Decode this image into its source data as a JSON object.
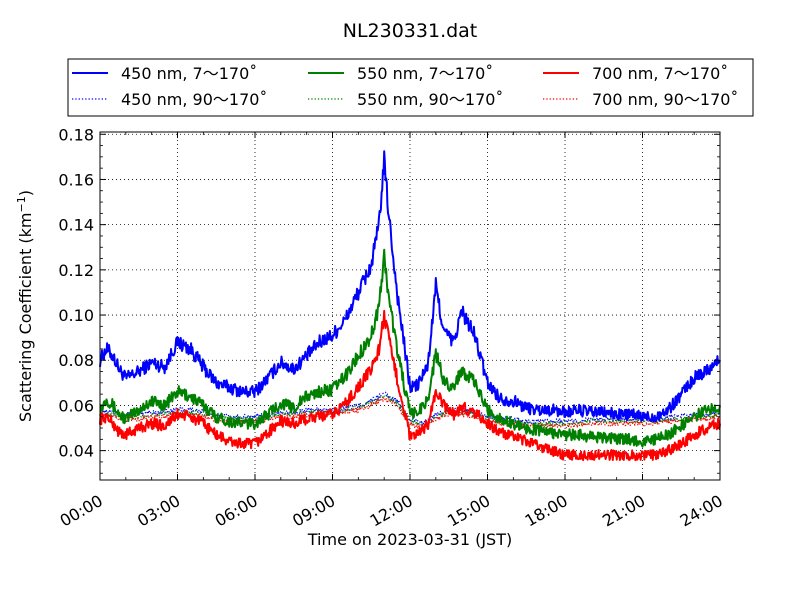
{
  "chart_data": {
    "type": "line",
    "title": "NL230331.dat",
    "xlabel": "Time on 2023-03-31 (JST)",
    "ylabel_main": "Scattering Coefficient (km",
    "ylabel_sup": "−1",
    "ylabel_close": ")",
    "xlim": [
      0,
      24
    ],
    "ylim": [
      0.027,
      0.181
    ],
    "x_ticks": [
      {
        "value": 0,
        "label": "00:00"
      },
      {
        "value": 3,
        "label": "03:00"
      },
      {
        "value": 6,
        "label": "06:00"
      },
      {
        "value": 9,
        "label": "09:00"
      },
      {
        "value": 12,
        "label": "12:00"
      },
      {
        "value": 15,
        "label": "15:00"
      },
      {
        "value": 18,
        "label": "18:00"
      },
      {
        "value": 21,
        "label": "21:00"
      },
      {
        "value": 24,
        "label": "24:00"
      }
    ],
    "y_ticks": [
      {
        "value": 0.04,
        "label": "0.04"
      },
      {
        "value": 0.06,
        "label": "0.06"
      },
      {
        "value": 0.08,
        "label": "0.08"
      },
      {
        "value": 0.1,
        "label": "0.10"
      },
      {
        "value": 0.12,
        "label": "0.12"
      },
      {
        "value": 0.14,
        "label": "0.14"
      },
      {
        "value": 0.16,
        "label": "0.16"
      },
      {
        "value": 0.18,
        "label": "0.18"
      }
    ],
    "grid": true,
    "legend_position": "top (above plot)",
    "series": [
      {
        "name": "450 nm, 7～170˚",
        "color": "#0000ff",
        "dash": "solid",
        "x": [
          0,
          0.25,
          0.5,
          0.75,
          1,
          1.5,
          2,
          2.5,
          3,
          3.5,
          4,
          4.5,
          5,
          5.5,
          6,
          6.5,
          7,
          7.5,
          8,
          8.5,
          9,
          9.5,
          10,
          10.5,
          10.8,
          11,
          11.2,
          11.5,
          12,
          12.3,
          12.7,
          13,
          13.3,
          13.7,
          14,
          14.5,
          15,
          15.5,
          16,
          16.5,
          17,
          17.5,
          18,
          18.5,
          19,
          19.5,
          20,
          20.5,
          21,
          21.5,
          22,
          22.5,
          23,
          23.5,
          24
        ],
        "y": [
          0.08,
          0.085,
          0.082,
          0.076,
          0.072,
          0.075,
          0.079,
          0.077,
          0.088,
          0.085,
          0.077,
          0.07,
          0.068,
          0.066,
          0.066,
          0.072,
          0.079,
          0.076,
          0.082,
          0.088,
          0.091,
          0.098,
          0.11,
          0.122,
          0.14,
          0.168,
          0.142,
          0.11,
          0.068,
          0.069,
          0.078,
          0.113,
          0.093,
          0.088,
          0.102,
          0.091,
          0.07,
          0.063,
          0.062,
          0.059,
          0.058,
          0.058,
          0.057,
          0.058,
          0.057,
          0.057,
          0.056,
          0.056,
          0.055,
          0.055,
          0.058,
          0.065,
          0.072,
          0.076,
          0.08
        ]
      },
      {
        "name": "550 nm, 7～170˚",
        "color": "#008000",
        "dash": "solid",
        "x": [
          0,
          0.25,
          0.5,
          0.75,
          1,
          1.5,
          2,
          2.5,
          3,
          3.5,
          4,
          4.5,
          5,
          5.5,
          6,
          6.5,
          7,
          7.5,
          8,
          8.5,
          9,
          9.5,
          10,
          10.5,
          10.8,
          11,
          11.2,
          11.5,
          12,
          12.3,
          12.7,
          13,
          13.3,
          13.7,
          14,
          14.5,
          15,
          15.5,
          16,
          16.5,
          17,
          17.5,
          18,
          18.5,
          19,
          19.5,
          20,
          20.5,
          21,
          21.5,
          22,
          22.5,
          23,
          23.5,
          24
        ],
        "y": [
          0.058,
          0.063,
          0.06,
          0.056,
          0.054,
          0.058,
          0.062,
          0.06,
          0.066,
          0.064,
          0.06,
          0.055,
          0.053,
          0.052,
          0.052,
          0.056,
          0.061,
          0.059,
          0.064,
          0.066,
          0.067,
          0.073,
          0.082,
          0.091,
          0.104,
          0.126,
          0.106,
          0.085,
          0.056,
          0.057,
          0.063,
          0.083,
          0.071,
          0.068,
          0.076,
          0.07,
          0.058,
          0.054,
          0.052,
          0.05,
          0.049,
          0.048,
          0.047,
          0.047,
          0.046,
          0.046,
          0.045,
          0.045,
          0.044,
          0.045,
          0.047,
          0.051,
          0.055,
          0.058,
          0.06
        ]
      },
      {
        "name": "700 nm, 7～170˚",
        "color": "#ff0000",
        "dash": "solid",
        "x": [
          0,
          0.25,
          0.5,
          0.75,
          1,
          1.5,
          2,
          2.5,
          3,
          3.5,
          4,
          4.5,
          5,
          5.5,
          6,
          6.5,
          7,
          7.5,
          8,
          8.5,
          9,
          9.5,
          10,
          10.5,
          10.8,
          11,
          11.2,
          11.5,
          12,
          12.3,
          12.7,
          13,
          13.3,
          13.7,
          14,
          14.5,
          15,
          15.5,
          16,
          16.5,
          17,
          17.5,
          18,
          18.5,
          19,
          19.5,
          20,
          20.5,
          21,
          21.5,
          22,
          22.5,
          23,
          23.5,
          24
        ],
        "y": [
          0.054,
          0.055,
          0.052,
          0.048,
          0.047,
          0.05,
          0.052,
          0.051,
          0.056,
          0.055,
          0.052,
          0.047,
          0.044,
          0.043,
          0.043,
          0.048,
          0.053,
          0.052,
          0.054,
          0.055,
          0.056,
          0.061,
          0.068,
          0.076,
          0.085,
          0.1,
          0.088,
          0.072,
          0.046,
          0.047,
          0.052,
          0.066,
          0.06,
          0.056,
          0.059,
          0.057,
          0.052,
          0.048,
          0.046,
          0.044,
          0.042,
          0.04,
          0.038,
          0.038,
          0.038,
          0.038,
          0.038,
          0.038,
          0.038,
          0.038,
          0.04,
          0.043,
          0.047,
          0.05,
          0.052
        ]
      },
      {
        "name": "450 nm, 90～170˚",
        "color": "#0000ff",
        "dash": "dotted",
        "x": [
          0,
          0.5,
          1,
          1.5,
          2,
          2.5,
          3,
          3.5,
          4,
          4.5,
          5,
          5.5,
          6,
          6.5,
          7,
          7.5,
          8,
          8.5,
          9,
          9.5,
          10,
          10.5,
          11,
          11.5,
          12,
          12.5,
          13,
          13.5,
          14,
          14.5,
          15,
          15.5,
          16,
          16.5,
          17,
          17.5,
          18,
          18.5,
          19,
          19.5,
          20,
          20.5,
          21,
          21.5,
          22,
          22.5,
          23,
          23.5,
          24
        ],
        "y": [
          0.057,
          0.057,
          0.056,
          0.056,
          0.057,
          0.057,
          0.058,
          0.058,
          0.057,
          0.056,
          0.055,
          0.055,
          0.055,
          0.056,
          0.057,
          0.057,
          0.058,
          0.058,
          0.058,
          0.059,
          0.06,
          0.062,
          0.065,
          0.062,
          0.054,
          0.052,
          0.056,
          0.058,
          0.058,
          0.057,
          0.055,
          0.054,
          0.054,
          0.053,
          0.053,
          0.053,
          0.053,
          0.053,
          0.054,
          0.054,
          0.054,
          0.054,
          0.054,
          0.054,
          0.055,
          0.055,
          0.056,
          0.056,
          0.057
        ]
      },
      {
        "name": "550 nm, 90～170˚",
        "color": "#008000",
        "dash": "dotted",
        "x": [
          0,
          0.5,
          1,
          1.5,
          2,
          2.5,
          3,
          3.5,
          4,
          4.5,
          5,
          5.5,
          6,
          6.5,
          7,
          7.5,
          8,
          8.5,
          9,
          9.5,
          10,
          10.5,
          11,
          11.5,
          12,
          12.5,
          13,
          13.5,
          14,
          14.5,
          15,
          15.5,
          16,
          16.5,
          17,
          17.5,
          18,
          18.5,
          19,
          19.5,
          20,
          20.5,
          21,
          21.5,
          22,
          22.5,
          23,
          23.5,
          24
        ],
        "y": [
          0.056,
          0.056,
          0.055,
          0.055,
          0.056,
          0.056,
          0.057,
          0.057,
          0.056,
          0.055,
          0.054,
          0.054,
          0.054,
          0.055,
          0.056,
          0.056,
          0.057,
          0.057,
          0.057,
          0.058,
          0.059,
          0.061,
          0.064,
          0.061,
          0.053,
          0.051,
          0.055,
          0.057,
          0.057,
          0.056,
          0.054,
          0.053,
          0.053,
          0.052,
          0.052,
          0.052,
          0.052,
          0.052,
          0.053,
          0.053,
          0.053,
          0.053,
          0.053,
          0.053,
          0.054,
          0.054,
          0.055,
          0.055,
          0.056
        ]
      },
      {
        "name": "700 nm, 90～170˚",
        "color": "#ff0000",
        "dash": "dotted",
        "x": [
          0,
          0.5,
          1,
          1.5,
          2,
          2.5,
          3,
          3.5,
          4,
          4.5,
          5,
          5.5,
          6,
          6.5,
          7,
          7.5,
          8,
          8.5,
          9,
          9.5,
          10,
          10.5,
          11,
          11.5,
          12,
          12.5,
          13,
          13.5,
          14,
          14.5,
          15,
          15.5,
          16,
          16.5,
          17,
          17.5,
          18,
          18.5,
          19,
          19.5,
          20,
          20.5,
          21,
          21.5,
          22,
          22.5,
          23,
          23.5,
          24
        ],
        "y": [
          0.055,
          0.055,
          0.054,
          0.054,
          0.055,
          0.055,
          0.056,
          0.056,
          0.055,
          0.054,
          0.053,
          0.053,
          0.053,
          0.054,
          0.055,
          0.055,
          0.056,
          0.056,
          0.056,
          0.057,
          0.058,
          0.06,
          0.063,
          0.06,
          0.052,
          0.05,
          0.054,
          0.056,
          0.056,
          0.055,
          0.053,
          0.052,
          0.052,
          0.051,
          0.051,
          0.051,
          0.051,
          0.051,
          0.052,
          0.052,
          0.052,
          0.052,
          0.052,
          0.052,
          0.053,
          0.053,
          0.054,
          0.054,
          0.055
        ]
      }
    ]
  }
}
